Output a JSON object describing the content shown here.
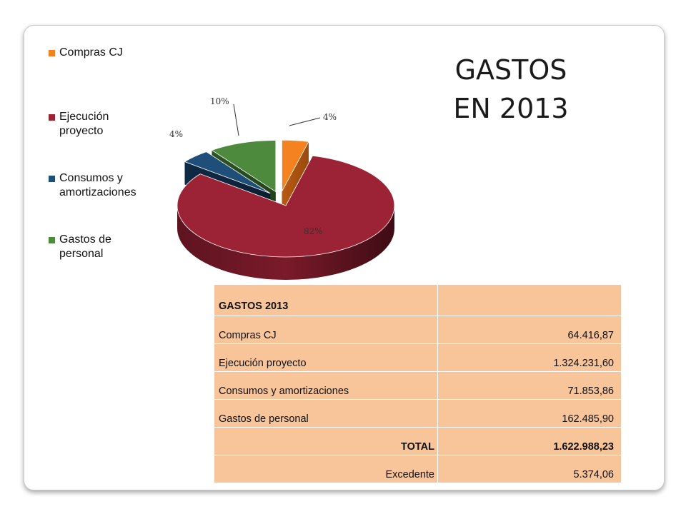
{
  "title": {
    "line1": "GASTOS",
    "line2": "EN 2013"
  },
  "chart_data": {
    "type": "pie",
    "style": "3d-exploded",
    "legend_position": "left",
    "slices": [
      {
        "label": "Compras CJ",
        "value": 64416.87,
        "percent_label": "4%",
        "color": "#f58220"
      },
      {
        "label": "Ejecución proyecto",
        "value": 1324231.6,
        "percent_label": "82%",
        "color": "#9b2335"
      },
      {
        "label": "Consumos y amortizaciones",
        "value": 71853.86,
        "percent_label": "4%",
        "color": "#1f4e79"
      },
      {
        "label": "Gastos de personal",
        "value": 162485.9,
        "percent_label": "10%",
        "color": "#4e8a3e"
      }
    ],
    "legend": [
      "Compras CJ",
      "Ejecución proyecto",
      "Consumos y amortizaciones",
      "Gastos de personal"
    ]
  },
  "table": {
    "header": [
      "GASTOS 2013",
      ""
    ],
    "rows": [
      {
        "label": "Compras CJ",
        "value": "64.416,87"
      },
      {
        "label": "Ejecución proyecto",
        "value": "1.324.231,60"
      },
      {
        "label": "Consumos y amortizaciones",
        "value": "71.853,86"
      },
      {
        "label": "Gastos de personal",
        "value": "162.485,90"
      }
    ],
    "total": {
      "label": "TOTAL",
      "value": "1.622.988,23"
    },
    "excedente": {
      "label": "Excedente",
      "value": "5.374,06"
    }
  }
}
